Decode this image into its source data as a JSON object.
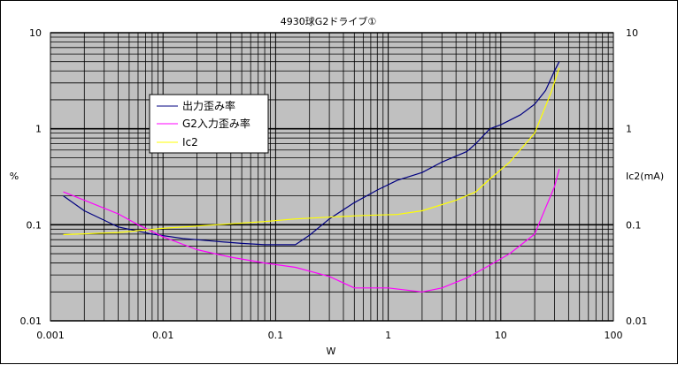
{
  "chart_data": {
    "type": "line",
    "title": "4930球G2ドライブ①",
    "xlabel": "W",
    "ylabel_left": "%",
    "ylabel_right": "Ic2(mA)",
    "xscale": "log",
    "yscale": "log",
    "xlim": [
      0.001,
      100
    ],
    "ylim": [
      0.01,
      10
    ],
    "x_tick_labels": [
      "0.001",
      "0.01",
      "0.1",
      "1",
      "10",
      "100"
    ],
    "y_tick_labels": [
      "0.01",
      "0.1",
      "1",
      "10"
    ],
    "grid": true,
    "legend_position": "upper-left",
    "plot_background": "#c0c0c0",
    "series": [
      {
        "name": "出力歪み率",
        "color": "#000080",
        "points": [
          [
            0.0013,
            0.2
          ],
          [
            0.002,
            0.14
          ],
          [
            0.004,
            0.095
          ],
          [
            0.008,
            0.08
          ],
          [
            0.015,
            0.072
          ],
          [
            0.03,
            0.067
          ],
          [
            0.05,
            0.064
          ],
          [
            0.08,
            0.062
          ],
          [
            0.15,
            0.062
          ],
          [
            0.2,
            0.078
          ],
          [
            0.3,
            0.115
          ],
          [
            0.5,
            0.17
          ],
          [
            0.8,
            0.23
          ],
          [
            1.2,
            0.29
          ],
          [
            2,
            0.35
          ],
          [
            3,
            0.45
          ],
          [
            5,
            0.58
          ],
          [
            6,
            0.7
          ],
          [
            8,
            1.0
          ],
          [
            10,
            1.1
          ],
          [
            15,
            1.4
          ],
          [
            20,
            1.8
          ],
          [
            25,
            2.5
          ],
          [
            30,
            4.0
          ],
          [
            33,
            5.0
          ]
        ]
      },
      {
        "name": "G2入力歪み率",
        "color": "#ff00ff",
        "points": [
          [
            0.0013,
            0.22
          ],
          [
            0.002,
            0.18
          ],
          [
            0.004,
            0.13
          ],
          [
            0.006,
            0.1
          ],
          [
            0.01,
            0.075
          ],
          [
            0.02,
            0.055
          ],
          [
            0.04,
            0.046
          ],
          [
            0.08,
            0.04
          ],
          [
            0.15,
            0.036
          ],
          [
            0.3,
            0.029
          ],
          [
            0.5,
            0.022
          ],
          [
            1,
            0.022
          ],
          [
            2,
            0.02
          ],
          [
            3,
            0.022
          ],
          [
            5,
            0.028
          ],
          [
            8,
            0.038
          ],
          [
            12,
            0.05
          ],
          [
            20,
            0.08
          ],
          [
            25,
            0.15
          ],
          [
            30,
            0.25
          ],
          [
            33,
            0.38
          ]
        ]
      },
      {
        "name": "Ic2",
        "color": "#ffff00",
        "points": [
          [
            0.0013,
            0.079
          ],
          [
            0.004,
            0.083
          ],
          [
            0.01,
            0.092
          ],
          [
            0.03,
            0.1
          ],
          [
            0.08,
            0.108
          ],
          [
            0.15,
            0.115
          ],
          [
            0.3,
            0.12
          ],
          [
            0.6,
            0.125
          ],
          [
            1.2,
            0.128
          ],
          [
            2,
            0.14
          ],
          [
            4,
            0.18
          ],
          [
            6,
            0.22
          ],
          [
            8,
            0.3
          ],
          [
            12,
            0.45
          ],
          [
            20,
            0.9
          ],
          [
            28,
            2.4
          ],
          [
            33,
            4.3
          ]
        ]
      }
    ]
  }
}
